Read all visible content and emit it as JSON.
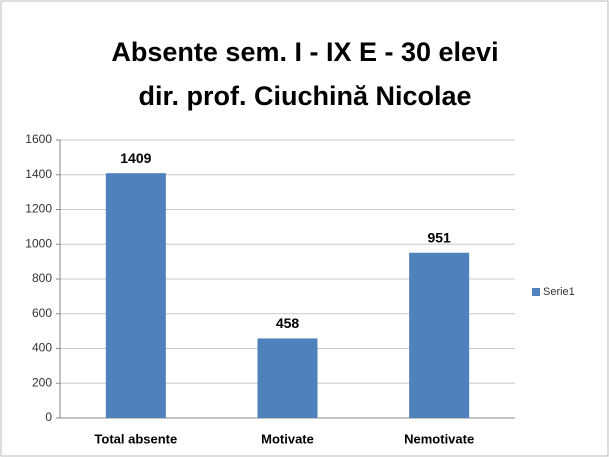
{
  "chart_data": {
    "type": "bar",
    "title": "Absente sem. I - IX E - 30 elevi",
    "subtitle": "dir. prof. Ciuchină Nicolae",
    "categories": [
      "Total absente",
      "Motivate",
      "Nemotivate"
    ],
    "series": [
      {
        "name": "Serie1",
        "color": "#4f81bd",
        "values": [
          1409,
          458,
          951
        ]
      }
    ],
    "ylim": [
      0,
      1600
    ],
    "yticks": [
      0,
      200,
      400,
      600,
      800,
      1000,
      1200,
      1400,
      1600
    ],
    "grid": true,
    "legend": "right",
    "data_labels": true
  }
}
